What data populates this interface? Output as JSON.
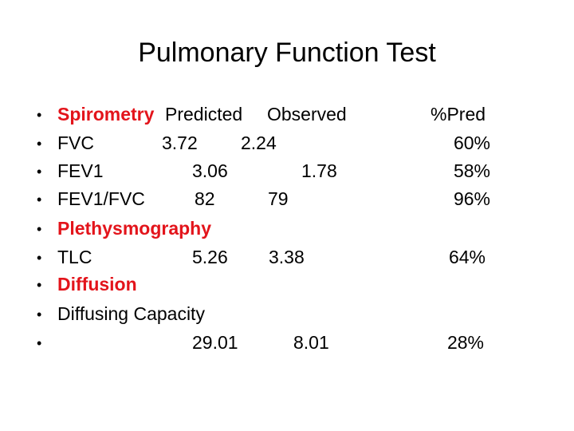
{
  "title": "Pulmonary Function Test",
  "rows": [
    {
      "label": "Spirometry",
      "predicted": "Predicted",
      "observed": "Observed",
      "percent_pred": "%Pred"
    },
    {
      "label": "FVC",
      "predicted": 3.72,
      "observed": 2.24,
      "percent_pred": "60%"
    },
    {
      "label": "FEV1",
      "predicted": 3.06,
      "observed": 1.78,
      "percent_pred": "58%"
    },
    {
      "label": "FEV1/FVC",
      "predicted": 82,
      "observed": 79,
      "percent_pred": "96%"
    },
    {
      "label": "Plethysmography"
    },
    {
      "label": "TLC",
      "predicted": 5.26,
      "observed": 3.38,
      "percent_pred": "64%"
    },
    {
      "label": "Diffusion"
    },
    {
      "label": "Diffusing Capacity"
    },
    {
      "predicted": 29.01,
      "observed": 8.01,
      "percent_pred": "28%"
    }
  ]
}
